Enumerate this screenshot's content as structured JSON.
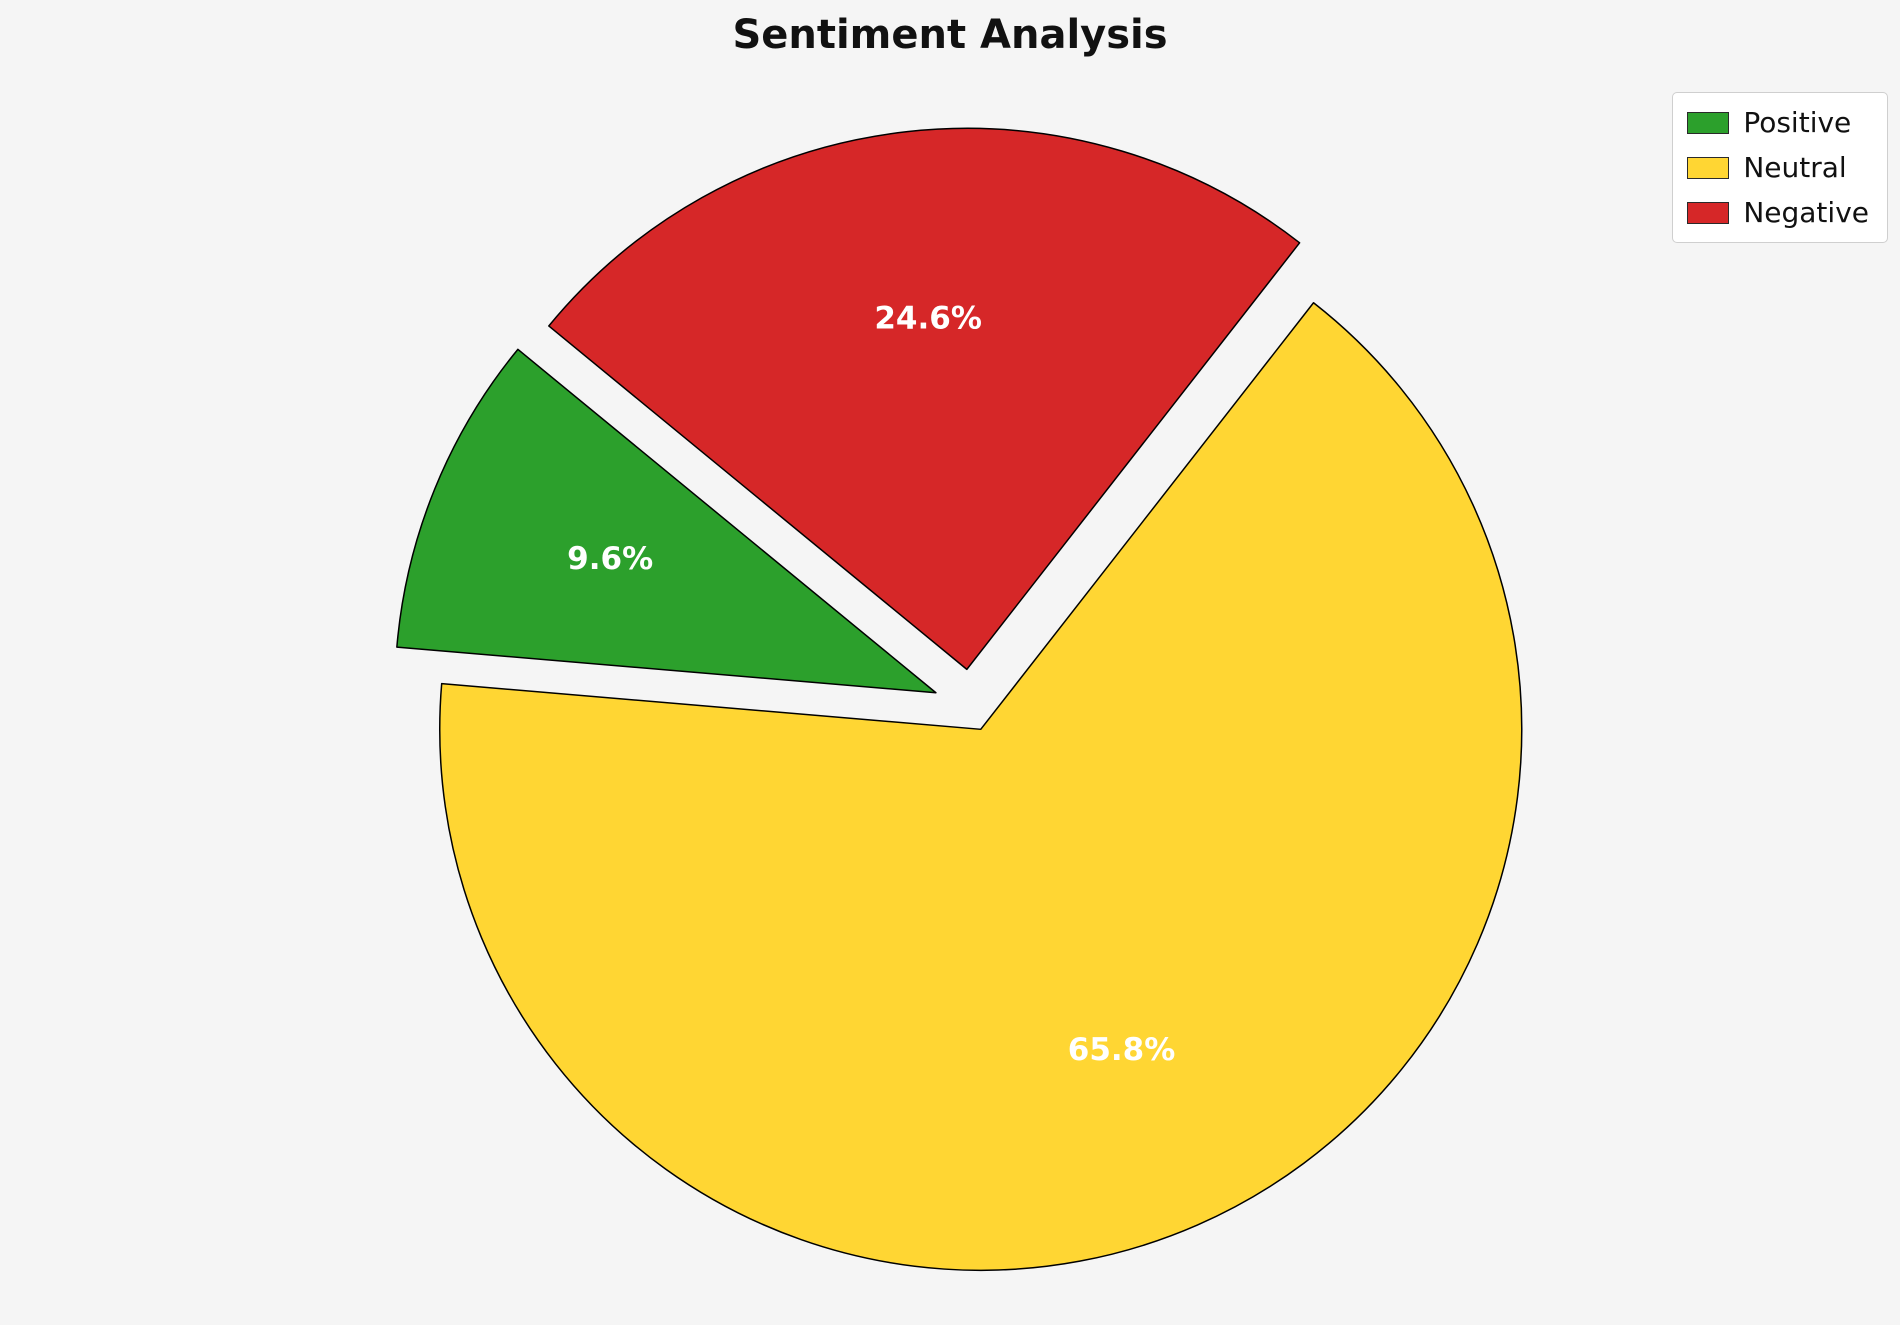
{
  "chart_data": {
    "type": "pie",
    "title": "Sentiment Analysis",
    "slices": [
      {
        "label": "Positive",
        "value": 9.6,
        "pct_label": "9.6%",
        "color": "#2ca02c"
      },
      {
        "label": "Neutral",
        "value": 65.8,
        "pct_label": "65.8%",
        "color": "#ffd633"
      },
      {
        "label": "Negative",
        "value": 24.6,
        "pct_label": "24.6%",
        "color": "#d62728"
      }
    ],
    "start_angle": 140.6,
    "direction": "counterclockwise",
    "explode": [
      0.07,
      0.045,
      0.07
    ],
    "pct_distance": 0.65,
    "edge_color": "#000000",
    "label_color": "#ffffff",
    "background": "#f5f5f5",
    "legend_position": "upper right"
  }
}
